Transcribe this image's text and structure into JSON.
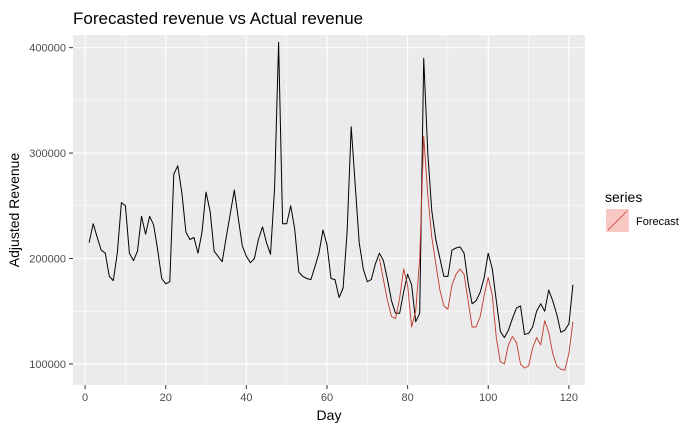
{
  "chart_data": {
    "type": "line",
    "title": "Forecasted revenue vs Actual revenue",
    "xlabel": "Day",
    "ylabel": "Adjusted Revenue",
    "xlim": [
      -3,
      124
    ],
    "ylim": [
      80000,
      412000
    ],
    "x_ticks": [
      0,
      20,
      40,
      60,
      80,
      100,
      120
    ],
    "x_tick_labels": [
      "0",
      "20",
      "40",
      "60",
      "80",
      "100",
      "120"
    ],
    "y_ticks": [
      100000,
      200000,
      300000,
      400000
    ],
    "y_tick_labels": [
      "100000",
      "200000",
      "300000",
      "400000"
    ],
    "grid": true,
    "legend": {
      "title": "series",
      "placement": "right",
      "entries": [
        "Forecast"
      ]
    },
    "colors": {
      "panel": "#ebebeb",
      "grid": "#ffffff",
      "actual": "#000000",
      "forecast": "#c0392b",
      "legend_key_fill": "#f8c8c4"
    },
    "series": [
      {
        "color": "#000000",
        "x": [
          1,
          2,
          3,
          4,
          5,
          6,
          7,
          8,
          9,
          10,
          11,
          12,
          13,
          14,
          15,
          16,
          17,
          18,
          19,
          20,
          21,
          22,
          23,
          24,
          25,
          26,
          27,
          28,
          29,
          30,
          31,
          32,
          33,
          34,
          35,
          36,
          37,
          38,
          39,
          40,
          41,
          42,
          43,
          44,
          45,
          46,
          47,
          48,
          49,
          50,
          51,
          52,
          53,
          54,
          55,
          56,
          57,
          58,
          59,
          60,
          61,
          62,
          63,
          64,
          65,
          66,
          67,
          68,
          69,
          70,
          71,
          72,
          73,
          74,
          75,
          76,
          77,
          78,
          79,
          80,
          81,
          82,
          83,
          84,
          85,
          86,
          87,
          88,
          89,
          90,
          91,
          92,
          93,
          94,
          95,
          96,
          97,
          98,
          99,
          100,
          101,
          102,
          103,
          104,
          105,
          106,
          107,
          108,
          109,
          110,
          111,
          112,
          113,
          114,
          115,
          116,
          117,
          118,
          119,
          120,
          121
        ],
        "y": [
          215000,
          233000,
          220000,
          208000,
          205000,
          183000,
          179000,
          205000,
          253000,
          250000,
          205000,
          198000,
          207000,
          240000,
          223000,
          240000,
          232000,
          208000,
          181000,
          176000,
          178000,
          280000,
          288000,
          262000,
          225000,
          218000,
          220000,
          205000,
          225000,
          263000,
          245000,
          207000,
          202000,
          197000,
          220000,
          242000,
          265000,
          238000,
          212000,
          202000,
          196000,
          200000,
          218000,
          230000,
          215000,
          204000,
          267000,
          405000,
          233000,
          233000,
          250000,
          228000,
          187000,
          183000,
          181000,
          180000,
          192000,
          205000,
          227000,
          213000,
          181000,
          180000,
          163000,
          172000,
          225000,
          325000,
          270000,
          215000,
          190000,
          178000,
          180000,
          195000,
          205000,
          198000,
          180000,
          160000,
          148000,
          148000,
          168000,
          185000,
          175000,
          140000,
          148000,
          390000,
          300000,
          245000,
          218000,
          200000,
          183000,
          183000,
          208000,
          210000,
          211000,
          205000,
          177000,
          157000,
          160000,
          168000,
          182000,
          205000,
          190000,
          160000,
          131000,
          125000,
          132000,
          143000,
          153000,
          155000,
          128000,
          129000,
          135000,
          150000,
          157000,
          150000,
          170000,
          160000,
          147000,
          130000,
          132000,
          138000,
          175000
        ]
      },
      {
        "name": "Forecast",
        "color": "#c0392b",
        "x": [
          73,
          74,
          75,
          76,
          77,
          78,
          79,
          80,
          81,
          82,
          83,
          84,
          85,
          86,
          87,
          88,
          89,
          90,
          91,
          92,
          93,
          94,
          95,
          96,
          97,
          98,
          99,
          100,
          101,
          102,
          103,
          104,
          105,
          106,
          107,
          108,
          109,
          110,
          111,
          112,
          113,
          114,
          115,
          116,
          117,
          118,
          119,
          120,
          121
        ],
        "y": [
          200000,
          180000,
          160000,
          145000,
          143000,
          162000,
          190000,
          175000,
          135000,
          150000,
          200000,
          316000,
          260000,
          220000,
          195000,
          170000,
          155000,
          152000,
          175000,
          185000,
          190000,
          185000,
          160000,
          135000,
          135000,
          145000,
          165000,
          182000,
          165000,
          125000,
          102000,
          100000,
          118000,
          126000,
          120000,
          100000,
          96000,
          98000,
          115000,
          125000,
          118000,
          141000,
          130000,
          110000,
          98000,
          95000,
          94000,
          110000,
          140000
        ]
      }
    ]
  }
}
